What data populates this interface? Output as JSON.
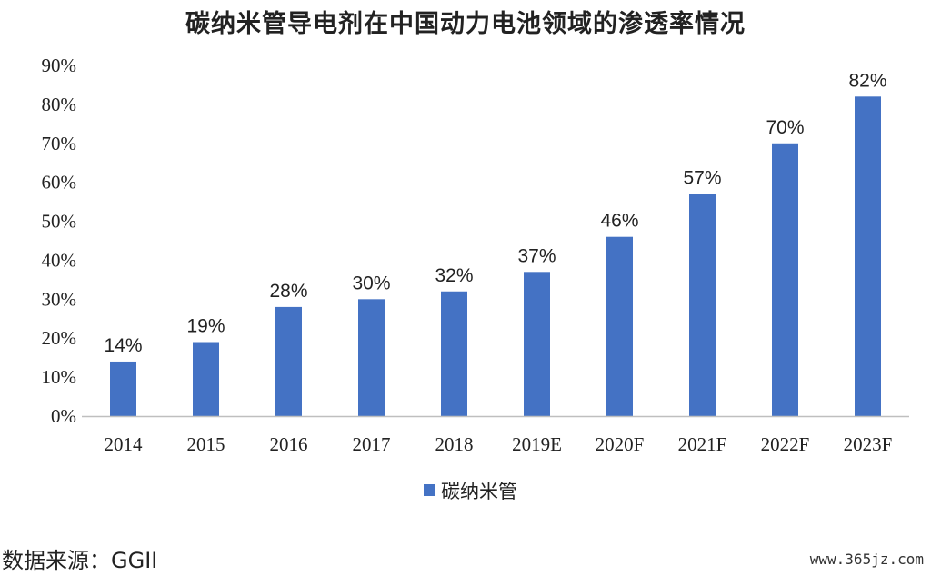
{
  "colors": {
    "bar": "#4472C4",
    "axis": "#bfbfbf"
  },
  "source": "数据来源：GGII",
  "watermark": "www.365jz.com",
  "chart_data": {
    "type": "bar",
    "title": "碳纳米管导电剂在中国动力电池领域的渗透率情况",
    "categories": [
      "2014",
      "2015",
      "2016",
      "2017",
      "2018",
      "2019E",
      "2020F",
      "2021F",
      "2022F",
      "2023F"
    ],
    "series": [
      {
        "name": "碳纳米管",
        "values": [
          14,
          19,
          28,
          30,
          32,
          37,
          46,
          57,
          70,
          82
        ]
      }
    ],
    "data_labels": [
      "14%",
      "19%",
      "28%",
      "30%",
      "32%",
      "37%",
      "46%",
      "57%",
      "70%",
      "82%"
    ],
    "yticks": [
      "0%",
      "10%",
      "20%",
      "30%",
      "40%",
      "50%",
      "60%",
      "70%",
      "80%",
      "90%"
    ],
    "ylim": [
      0,
      90
    ],
    "grid": false,
    "legend_position": "bottom"
  }
}
